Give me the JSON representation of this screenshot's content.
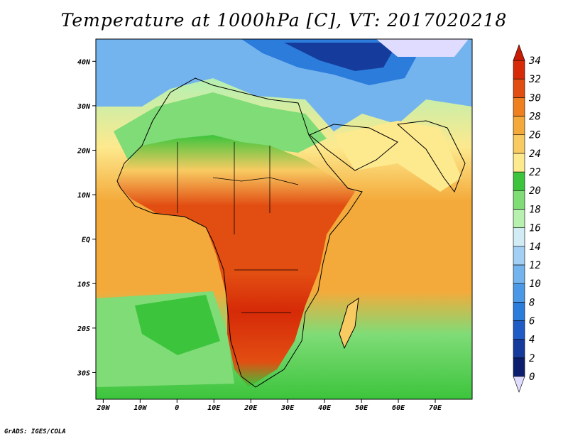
{
  "title": "Temperature at 1000hPa [C], VT: 2017020218",
  "credit": "GrADS: IGES/COLA",
  "map": {
    "lon_range": [
      -22,
      80
    ],
    "lat_range": [
      -36,
      45
    ],
    "lon_ticks": [
      {
        "lon": -20,
        "label": "20W"
      },
      {
        "lon": -10,
        "label": "10W"
      },
      {
        "lon": 0,
        "label": "0"
      },
      {
        "lon": 10,
        "label": "10E"
      },
      {
        "lon": 20,
        "label": "20E"
      },
      {
        "lon": 30,
        "label": "30E"
      },
      {
        "lon": 40,
        "label": "40E"
      },
      {
        "lon": 50,
        "label": "50E"
      },
      {
        "lon": 60,
        "label": "60E"
      },
      {
        "lon": 70,
        "label": "70E"
      }
    ],
    "lat_ticks": [
      {
        "lat": 40,
        "label": "40N"
      },
      {
        "lat": 30,
        "label": "30N"
      },
      {
        "lat": 20,
        "label": "20N"
      },
      {
        "lat": 10,
        "label": "10N"
      },
      {
        "lat": 0,
        "label": "EQ"
      },
      {
        "lat": -10,
        "label": "10S"
      },
      {
        "lat": -20,
        "label": "20S"
      },
      {
        "lat": -30,
        "label": "30S"
      }
    ]
  },
  "colorbar": {
    "levels": [
      "0",
      "2",
      "4",
      "6",
      "8",
      "10",
      "12",
      "14",
      "16",
      "18",
      "20",
      "22",
      "24",
      "26",
      "28",
      "30",
      "32",
      "34"
    ],
    "colors": [
      "#0b1f6e",
      "#153c9c",
      "#1f5cc6",
      "#2c7cdc",
      "#4b98e6",
      "#74b4ee",
      "#a3cff4",
      "#d2ecf6",
      "#b8f0b0",
      "#7fdc77",
      "#3cc43c",
      "#fde98e",
      "#f8cb62",
      "#f4aa3a",
      "#ee8020",
      "#e24e12",
      "#d62a08"
    ],
    "under_color": "#e0dcff",
    "over_color": "#c81c04"
  }
}
